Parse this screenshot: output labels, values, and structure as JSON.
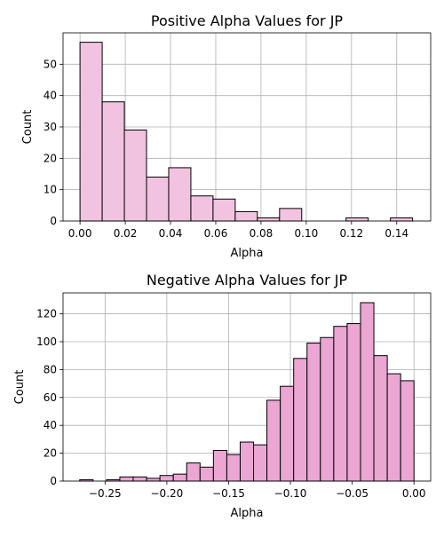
{
  "chart_data": [
    {
      "type": "bar",
      "title": "Positive Alpha Values for JP",
      "xlabel": "Alpha",
      "ylabel": "Count",
      "color": "#f2c3e0",
      "grid": true,
      "xlim": [
        -0.0075,
        0.155
      ],
      "ylim": [
        0,
        60
      ],
      "xticks": [
        "0.00",
        "0.02",
        "0.04",
        "0.06",
        "0.08",
        "0.10",
        "0.12",
        "0.14"
      ],
      "yticks": [
        "0",
        "10",
        "20",
        "30",
        "40",
        "50"
      ],
      "bin_start": 0.0,
      "bin_width": 0.0098,
      "counts": [
        57,
        38,
        29,
        14,
        17,
        8,
        7,
        3,
        1,
        4,
        0,
        0,
        1,
        0,
        1
      ]
    },
    {
      "type": "bar",
      "title": "Negative Alpha Values for JP",
      "xlabel": "Alpha",
      "ylabel": "Count",
      "color": "#eba6d3",
      "grid": true,
      "xlim": [
        -0.284,
        0.0135
      ],
      "ylim": [
        0,
        135
      ],
      "xticks": [
        "−0.25",
        "−0.20",
        "−0.15",
        "−0.10",
        "−0.05",
        "0.00"
      ],
      "yticks": [
        "0",
        "20",
        "40",
        "60",
        "80",
        "100",
        "120"
      ],
      "bin_start": -0.2705,
      "bin_width": 0.01082,
      "counts": [
        1,
        0,
        1,
        3,
        3,
        2,
        4,
        5,
        13,
        10,
        22,
        19,
        28,
        26,
        58,
        68,
        88,
        99,
        103,
        111,
        113,
        128,
        90,
        77,
        72
      ]
    }
  ]
}
